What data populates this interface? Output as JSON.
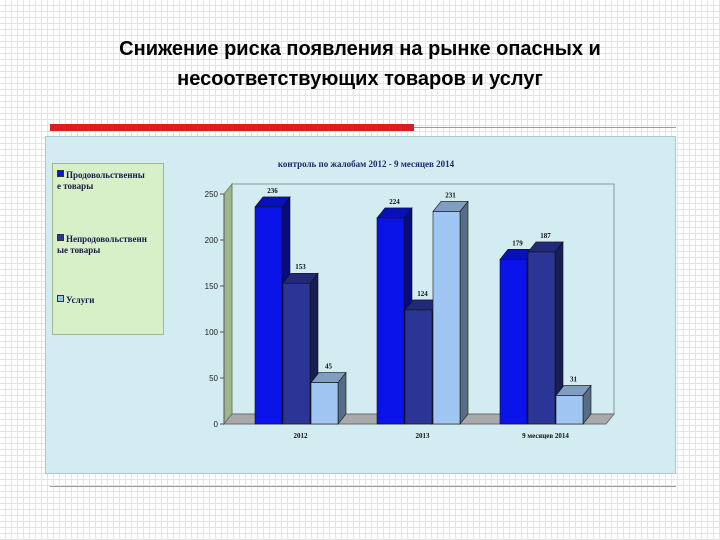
{
  "slide": {
    "title_line1": "Снижение риска появления на рынке опасных и",
    "title_line2": "несоответствующих товаров и услуг"
  },
  "chart_data": {
    "type": "bar",
    "title": "контроль по жалобам 2012 - 9 месяцев 2014",
    "categories": [
      "2012",
      "2013",
      "9 месяцев 2014"
    ],
    "series": [
      {
        "name": "Продовольственные товары",
        "values": [
          236,
          224,
          179
        ],
        "color": "#0a14e8"
      },
      {
        "name": "Непродовольственные товары",
        "values": [
          153,
          124,
          187
        ],
        "color": "#2b3596"
      },
      {
        "name": "Услуги",
        "values": [
          45,
          231,
          31
        ],
        "color": "#9fc6f2"
      }
    ],
    "ylim": [
      0,
      250
    ],
    "yticks": [
      "0",
      "50",
      "100",
      "150",
      "200",
      "250"
    ],
    "legend_position": "left",
    "grid": false
  },
  "legend": {
    "items": [
      {
        "line1": "Продовольственны",
        "line2": "е товары"
      },
      {
        "line1": "Непродовольственн",
        "line2": "ые товары"
      },
      {
        "line1": "Услуги",
        "line2": ""
      }
    ]
  }
}
